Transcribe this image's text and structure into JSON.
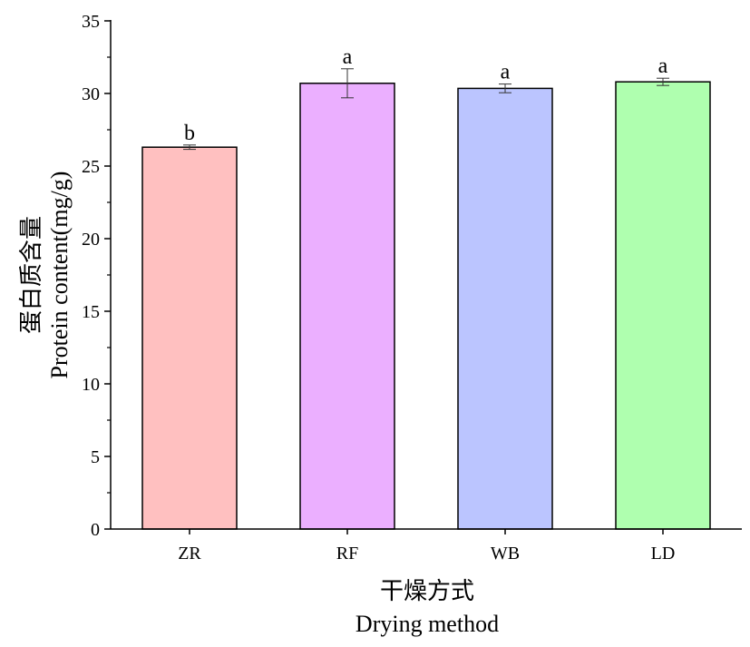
{
  "chart_data": {
    "type": "bar",
    "categories": [
      "ZR",
      "RF",
      "WB",
      "LD"
    ],
    "values": [
      26.3,
      30.7,
      30.35,
      30.8
    ],
    "errors": [
      0.15,
      1.0,
      0.3,
      0.25
    ],
    "significance_labels": [
      "b",
      "a",
      "a",
      "a"
    ],
    "colors": [
      "#FFC0C0",
      "#EBAFFF",
      "#BBC5FF",
      "#AFFFAF"
    ],
    "xlabel_cn": "干燥方式",
    "xlabel": "Drying method",
    "ylabel_cn": "蛋白质含量",
    "ylabel": "Protein content(mg/g)",
    "ylim": [
      0,
      35
    ],
    "yticks": [
      0,
      5,
      10,
      15,
      20,
      25,
      30,
      35
    ],
    "grid": false
  }
}
